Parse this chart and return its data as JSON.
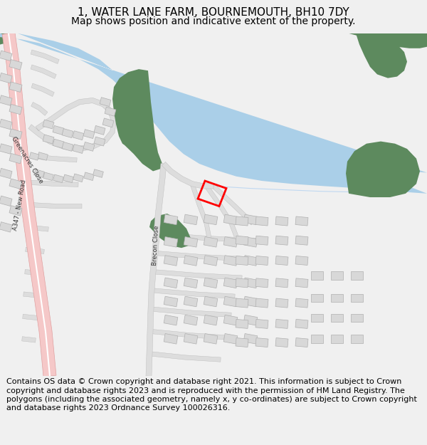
{
  "title_line1": "1, WATER LANE FARM, BOURNEMOUTH, BH10 7DY",
  "title_line2": "Map shows position and indicative extent of the property.",
  "footer_text": "Contains OS data © Crown copyright and database right 2021. This information is subject to Crown copyright and database rights 2023 and is reproduced with the permission of HM Land Registry. The polygons (including the associated geometry, namely x, y co-ordinates) are subject to Crown copyright and database rights 2023 Ordnance Survey 100026316.",
  "bg_color": "#f0f0f0",
  "map_bg": "#ffffff",
  "title_fontsize": 11,
  "subtitle_fontsize": 10,
  "footer_fontsize": 8.0,
  "fig_width": 6.0,
  "fig_height": 6.25,
  "dpi": 100,
  "river_color": "#aacfe8",
  "green_color": "#5d8a5e",
  "road_fill": "#f5c8c8",
  "building_color": "#d8d8d8",
  "building_edge": "#b0b0b0",
  "property_color": "#ff0000",
  "street_color": "#dddddd",
  "street_edge": "#bbbbbb"
}
